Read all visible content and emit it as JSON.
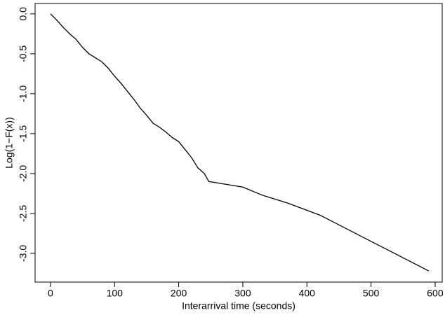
{
  "chart_data": {
    "type": "line",
    "x_label": "Interarrival time (seconds)",
    "y_label": "Log(1−F(x))",
    "x": [
      0,
      10,
      20,
      30,
      40,
      50,
      60,
      70,
      80,
      90,
      100,
      110,
      120,
      130,
      140,
      150,
      160,
      170,
      180,
      190,
      200,
      210,
      220,
      230,
      240,
      247,
      300,
      330,
      370,
      420,
      590
    ],
    "values": [
      0,
      -0.08,
      -0.17,
      -0.25,
      -0.32,
      -0.42,
      -0.5,
      -0.55,
      -0.6,
      -0.68,
      -0.78,
      -0.87,
      -0.97,
      -1.07,
      -1.18,
      -1.27,
      -1.37,
      -1.42,
      -1.48,
      -1.55,
      -1.6,
      -1.7,
      -1.8,
      -1.93,
      -2.0,
      -2.1,
      -2.17,
      -2.27,
      -2.37,
      -2.52,
      -3.22
    ],
    "color": "#000000",
    "xlim": [
      -24,
      611
    ],
    "ylim": [
      -3.36,
      0.13
    ],
    "xticks": [
      0,
      100,
      200,
      300,
      400,
      500,
      600
    ],
    "yticks": [
      {
        "value": 0,
        "label": "0.0"
      },
      -0.5,
      {
        "value": -1,
        "label": "-1.0"
      },
      -1.5,
      {
        "value": -2,
        "label": "-2.0"
      },
      -2.5,
      {
        "value": -3,
        "label": "-3.0"
      }
    ]
  }
}
